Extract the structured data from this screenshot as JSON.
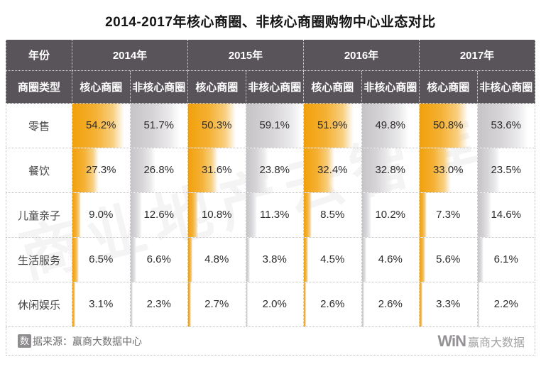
{
  "title": "2014-2017年核心商圈、非核心商圈购物中心业态对比",
  "colors": {
    "header_bg": "#59545A",
    "core_bar": "#F5A623",
    "noncore_bar": "#CDCBCE"
  },
  "chart_data": {
    "type": "table",
    "title": "2014-2017年核心商圈、非核心商圈购物中心业态对比",
    "corner_row1": "年份",
    "corner_row2": "商圈类型",
    "year_groups": [
      "2014年",
      "2015年",
      "2016年",
      "2017年"
    ],
    "subcolumns": [
      "核心商圈",
      "非核心商圈"
    ],
    "unit": "%",
    "bar_scale_max": 60,
    "rows": [
      {
        "label": "零售",
        "values": [
          54.2,
          51.7,
          50.3,
          59.1,
          51.9,
          49.8,
          50.8,
          53.6
        ],
        "display": [
          "54.2%",
          "51.7%",
          "50.3%",
          "59.1%",
          "51.9%",
          "49.8%",
          "50.8%",
          "53.6%"
        ]
      },
      {
        "label": "餐饮",
        "values": [
          27.3,
          26.8,
          31.6,
          23.8,
          32.4,
          32.8,
          33.0,
          23.5
        ],
        "display": [
          "27.3%",
          "26.8%",
          "31.6%",
          "23.8%",
          "32.4%",
          "32.8%",
          "33.0%",
          "23.5%"
        ]
      },
      {
        "label": "儿童亲子",
        "values": [
          9.0,
          12.6,
          10.8,
          11.3,
          8.5,
          10.2,
          7.3,
          14.6
        ],
        "display": [
          "9.0%",
          "12.6%",
          "10.8%",
          "11.3%",
          "8.5%",
          "10.2%",
          "7.3%",
          "14.6%"
        ]
      },
      {
        "label": "生活服务",
        "values": [
          6.5,
          6.6,
          4.8,
          3.8,
          4.5,
          4.6,
          5.6,
          6.1
        ],
        "display": [
          "6.5%",
          "6.6%",
          "4.8%",
          "3.8%",
          "4.5%",
          "4.6%",
          "5.6%",
          "6.1%"
        ]
      },
      {
        "label": "休闲娱乐",
        "values": [
          3.1,
          2.3,
          2.7,
          2.0,
          2.6,
          2.6,
          3.3,
          2.2
        ],
        "display": [
          "3.1%",
          "2.3%",
          "2.7%",
          "2.0%",
          "2.6%",
          "2.6%",
          "3.3%",
          "2.2%"
        ]
      }
    ]
  },
  "watermark": "商业地产云智库",
  "footer": {
    "source_boxed": "数",
    "source_text": "据来源：赢商大数据中心",
    "logo_mark": "WiN",
    "logo_text": "赢商大数据"
  }
}
